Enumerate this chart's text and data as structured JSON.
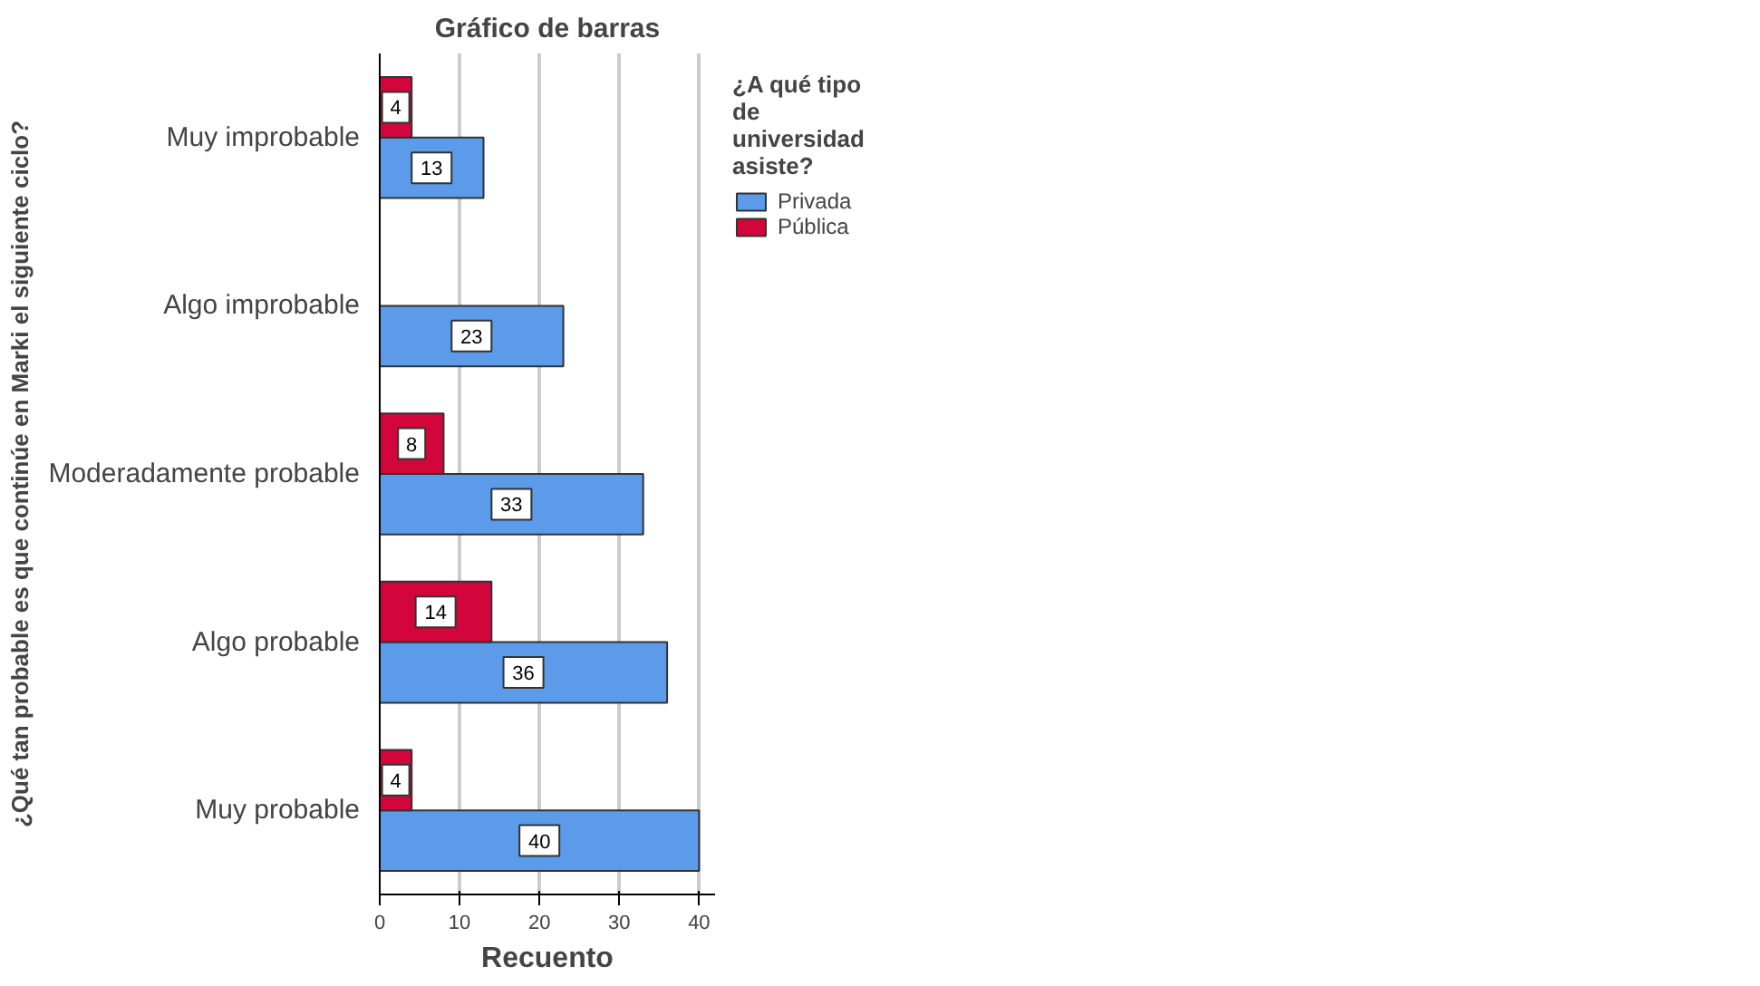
{
  "chart_data": {
    "type": "bar",
    "orientation": "horizontal",
    "title": "Gráfico de barras",
    "xlabel": "Recuento",
    "ylabel": "¿Qué tan probable es que continúe en Marki el siguiente ciclo?",
    "legend_title": "¿A qué tipo de universidad asiste?",
    "categories": [
      "Muy improbable",
      "Algo improbable",
      "Moderadamente probable",
      "Algo probable",
      "Muy probable"
    ],
    "series": [
      {
        "name": "Privada",
        "color": "#5b9bea",
        "values": [
          13,
          23,
          33,
          36,
          40
        ]
      },
      {
        "name": "Pública",
        "color": "#d3063b",
        "values": [
          4,
          null,
          8,
          14,
          4
        ]
      }
    ],
    "xlim": [
      0,
      42
    ],
    "xticks": [
      0,
      10,
      20,
      30,
      40
    ],
    "grid": "x",
    "legend": "right",
    "data_labels": true
  }
}
